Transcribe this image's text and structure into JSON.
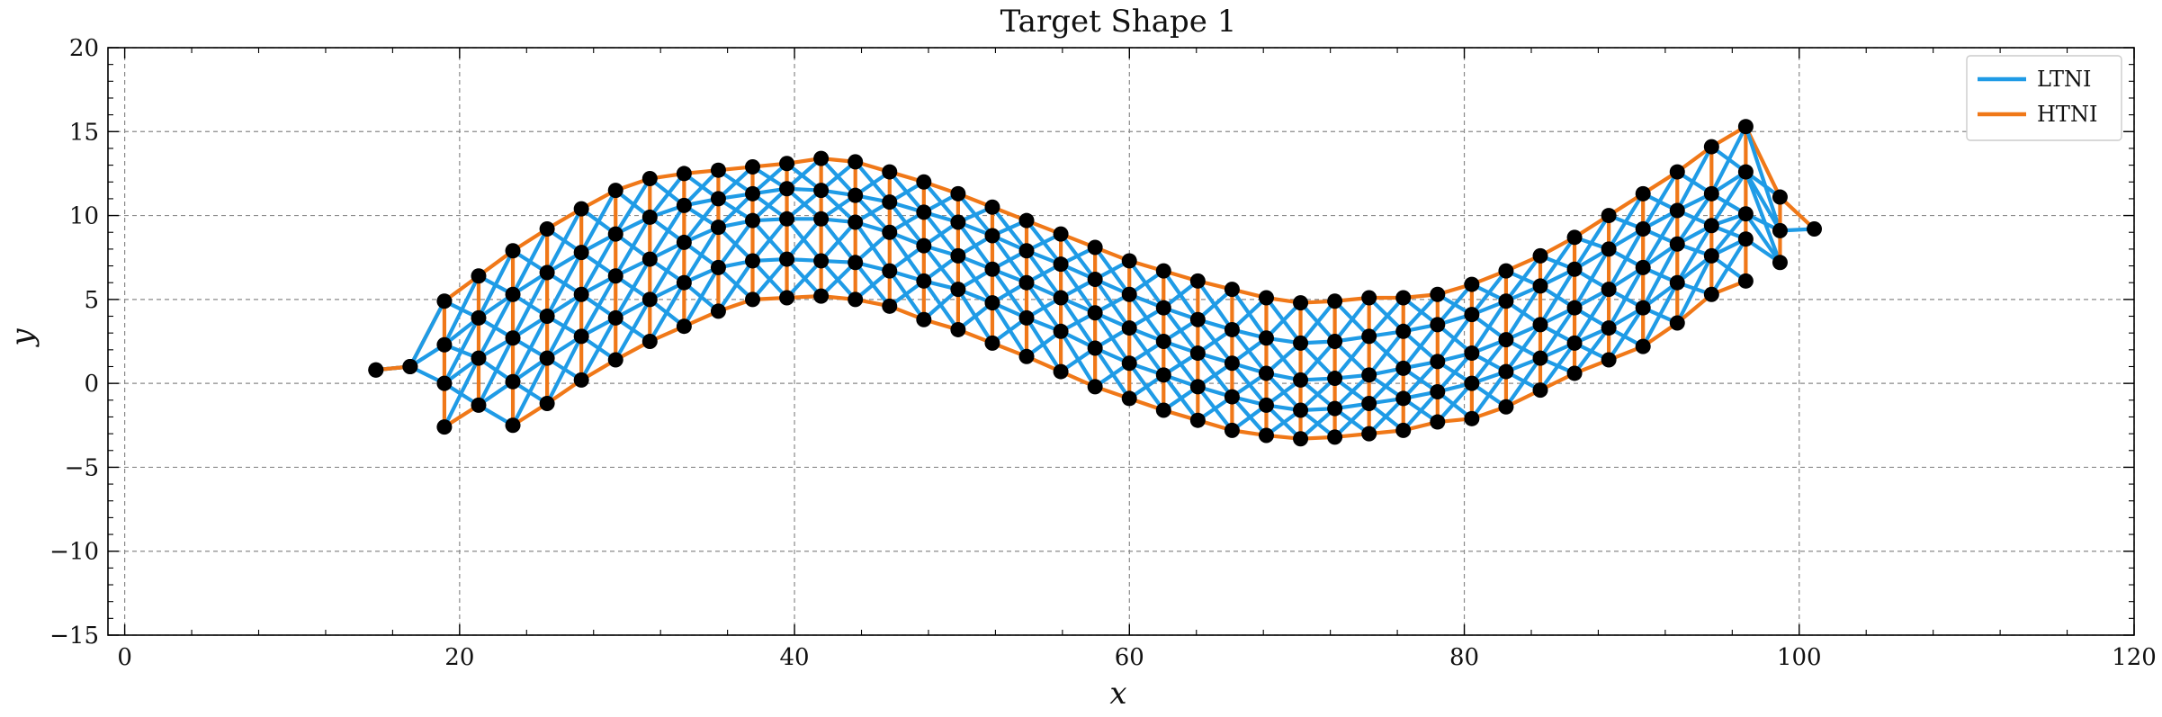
{
  "chart_data": {
    "type": "line",
    "title": "Target Shape 1",
    "xlabel": "x",
    "ylabel": "y",
    "xlim": [
      -1,
      120
    ],
    "ylim": [
      -15,
      20
    ],
    "xticks": [
      0,
      20,
      40,
      60,
      80,
      100,
      120
    ],
    "yticks": [
      -15,
      -10,
      -5,
      0,
      5,
      10,
      15,
      20
    ],
    "xtick_labels": [
      "0",
      "20",
      "40",
      "60",
      "80",
      "100",
      "120"
    ],
    "ytick_labels": [
      "−15",
      "−10",
      "−5",
      "0",
      "5",
      "10",
      "15",
      "20"
    ],
    "grid": true,
    "legend_position": "top-right",
    "series": [
      {
        "name": "LTNI",
        "color": "#1f9be6"
      },
      {
        "name": "HTNI",
        "color": "#f07818"
      }
    ],
    "mesh": {
      "columns": [
        [
          0.8,
          0.8
        ],
        [
          1.0,
          1.0
        ],
        [
          4.9,
          2.3,
          0.0,
          -2.6
        ],
        [
          6.4,
          3.9,
          1.5,
          -1.3
        ],
        [
          7.9,
          5.3,
          2.7,
          0.1,
          -2.5
        ],
        [
          9.2,
          6.6,
          4.0,
          1.5,
          -1.2
        ],
        [
          10.4,
          7.8,
          5.3,
          2.8,
          0.2
        ],
        [
          11.5,
          8.9,
          6.4,
          3.9,
          1.4
        ],
        [
          12.2,
          9.9,
          7.4,
          5.0,
          2.5
        ],
        [
          12.5,
          10.6,
          8.4,
          6.0,
          3.4
        ],
        [
          12.7,
          11.0,
          9.3,
          6.9,
          4.3
        ],
        [
          12.9,
          11.3,
          9.7,
          7.3,
          5.0
        ],
        [
          13.1,
          11.6,
          9.8,
          7.4,
          5.1
        ],
        [
          13.4,
          11.5,
          9.8,
          7.3,
          5.2
        ],
        [
          13.2,
          11.2,
          9.6,
          7.2,
          5.0
        ],
        [
          12.6,
          10.8,
          9.0,
          6.7,
          4.6
        ],
        [
          12.0,
          10.2,
          8.2,
          6.1,
          3.8
        ],
        [
          11.3,
          9.6,
          7.6,
          5.6,
          3.2
        ],
        [
          10.5,
          8.8,
          6.8,
          4.8,
          2.4
        ],
        [
          9.7,
          7.9,
          6.0,
          3.9,
          1.6
        ],
        [
          8.9,
          7.1,
          5.1,
          3.1,
          0.7
        ],
        [
          8.1,
          6.2,
          4.2,
          2.1,
          -0.2
        ],
        [
          7.3,
          5.3,
          3.3,
          1.2,
          -0.9
        ],
        [
          6.7,
          4.5,
          2.5,
          0.5,
          -1.6
        ],
        [
          6.1,
          3.8,
          1.8,
          -0.2,
          -2.2
        ],
        [
          5.6,
          3.2,
          1.2,
          -0.8,
          -2.8
        ],
        [
          5.1,
          2.7,
          0.6,
          -1.3,
          -3.1
        ],
        [
          4.8,
          2.4,
          0.2,
          -1.6,
          -3.3
        ],
        [
          4.9,
          2.5,
          0.3,
          -1.5,
          -3.2
        ],
        [
          5.1,
          2.8,
          0.5,
          -1.2,
          -3.0
        ],
        [
          5.1,
          3.1,
          0.9,
          -0.9,
          -2.8
        ],
        [
          5.3,
          3.5,
          1.3,
          -0.5,
          -2.3
        ],
        [
          5.9,
          4.1,
          1.8,
          0.0,
          -2.1
        ],
        [
          6.7,
          4.9,
          2.6,
          0.7,
          -1.4
        ],
        [
          7.6,
          5.8,
          3.5,
          1.5,
          -0.4
        ],
        [
          8.7,
          6.8,
          4.5,
          2.4,
          0.6
        ],
        [
          10.0,
          8.0,
          5.6,
          3.3,
          1.4
        ],
        [
          11.3,
          9.2,
          6.9,
          4.5,
          2.2
        ],
        [
          12.6,
          10.3,
          8.3,
          6.0,
          3.6
        ],
        [
          14.1,
          11.3,
          9.4,
          7.6,
          5.3
        ],
        [
          15.3,
          12.6,
          10.1,
          8.6,
          6.1
        ],
        [
          11.1,
          9.1,
          7.2
        ],
        [
          9.2
        ]
      ]
    }
  }
}
